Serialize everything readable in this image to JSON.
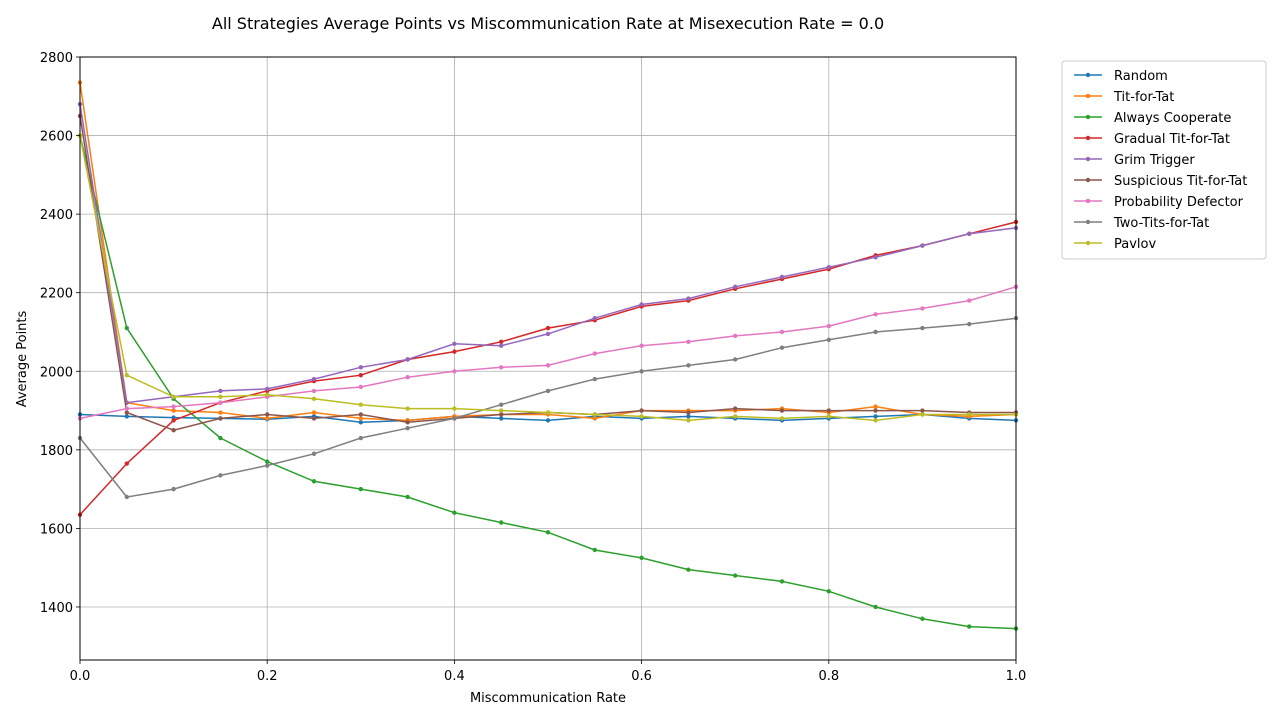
{
  "chart_data": {
    "type": "line",
    "title": "All Strategies Average Points vs Miscommunication Rate at Misexecution Rate = 0.0",
    "xlabel": "Miscommunication Rate",
    "ylabel": "Average Points",
    "xlim": [
      0,
      1
    ],
    "ylim": [
      1265,
      2800
    ],
    "x_ticks": [
      "0.0",
      "0.2",
      "0.4",
      "0.6",
      "0.8",
      "1.0"
    ],
    "y_ticks": [
      "1400",
      "1600",
      "1800",
      "2000",
      "2200",
      "2400",
      "2600",
      "2800"
    ],
    "grid": true,
    "legend_position": "outside-right",
    "x": [
      0.0,
      0.05,
      0.1,
      0.15,
      0.2,
      0.25,
      0.3,
      0.35,
      0.4,
      0.45,
      0.5,
      0.55,
      0.6,
      0.65,
      0.7,
      0.75,
      0.8,
      0.85,
      0.9,
      0.95,
      1.0
    ],
    "series": [
      {
        "name": "Random",
        "color": "#1f77b4",
        "values": [
          1890,
          1885,
          1882,
          1880,
          1878,
          1885,
          1870,
          1875,
          1885,
          1880,
          1875,
          1885,
          1880,
          1885,
          1880,
          1875,
          1880,
          1885,
          1890,
          1880,
          1875
        ]
      },
      {
        "name": "Tit-for-Tat",
        "color": "#ff7f0e",
        "values": [
          2735,
          1920,
          1900,
          1895,
          1880,
          1895,
          1880,
          1875,
          1885,
          1890,
          1890,
          1880,
          1900,
          1900,
          1900,
          1905,
          1895,
          1910,
          1890,
          1885,
          1890
        ]
      },
      {
        "name": "Always Cooperate",
        "color": "#2ca02c",
        "values": [
          2600,
          2110,
          1930,
          1830,
          1770,
          1720,
          1700,
          1680,
          1640,
          1615,
          1590,
          1545,
          1525,
          1495,
          1480,
          1465,
          1440,
          1400,
          1370,
          1350,
          1345
        ]
      },
      {
        "name": "Gradual Tit-for-Tat",
        "color": "#d62728",
        "values": [
          1635,
          1765,
          1875,
          1920,
          1950,
          1975,
          1990,
          2030,
          2050,
          2075,
          2110,
          2130,
          2165,
          2180,
          2210,
          2235,
          2260,
          2295,
          2320,
          2350,
          2380
        ]
      },
      {
        "name": "Grim Trigger",
        "color": "#9467bd",
        "values": [
          2680,
          1920,
          1935,
          1950,
          1955,
          1980,
          2010,
          2030,
          2070,
          2065,
          2095,
          2135,
          2170,
          2185,
          2215,
          2240,
          2265,
          2290,
          2320,
          2350,
          2365
        ]
      },
      {
        "name": "Suspicious Tit-for-Tat",
        "color": "#8c564b",
        "values": [
          2650,
          1895,
          1850,
          1880,
          1890,
          1880,
          1890,
          1870,
          1880,
          1890,
          1895,
          1890,
          1900,
          1895,
          1905,
          1900,
          1900,
          1900,
          1900,
          1895,
          1895
        ]
      },
      {
        "name": "Probability Defector",
        "color": "#e377c2",
        "values": [
          1880,
          1905,
          1910,
          1920,
          1935,
          1950,
          1960,
          1985,
          2000,
          2010,
          2015,
          2045,
          2065,
          2075,
          2090,
          2100,
          2115,
          2145,
          2160,
          2180,
          2215
        ]
      },
      {
        "name": "Two-Tits-for-Tat",
        "color": "#7f7f7f",
        "values": [
          1830,
          1680,
          1700,
          1735,
          1760,
          1790,
          1830,
          1855,
          1880,
          1915,
          1950,
          1980,
          2000,
          2015,
          2030,
          2060,
          2080,
          2100,
          2110,
          2120,
          2135
        ]
      },
      {
        "name": "Pavlov",
        "color": "#bcbd22",
        "values": [
          2600,
          1990,
          1935,
          1935,
          1940,
          1930,
          1915,
          1905,
          1905,
          1900,
          1895,
          1890,
          1885,
          1875,
          1885,
          1880,
          1885,
          1875,
          1890,
          1890,
          1890
        ]
      }
    ]
  }
}
